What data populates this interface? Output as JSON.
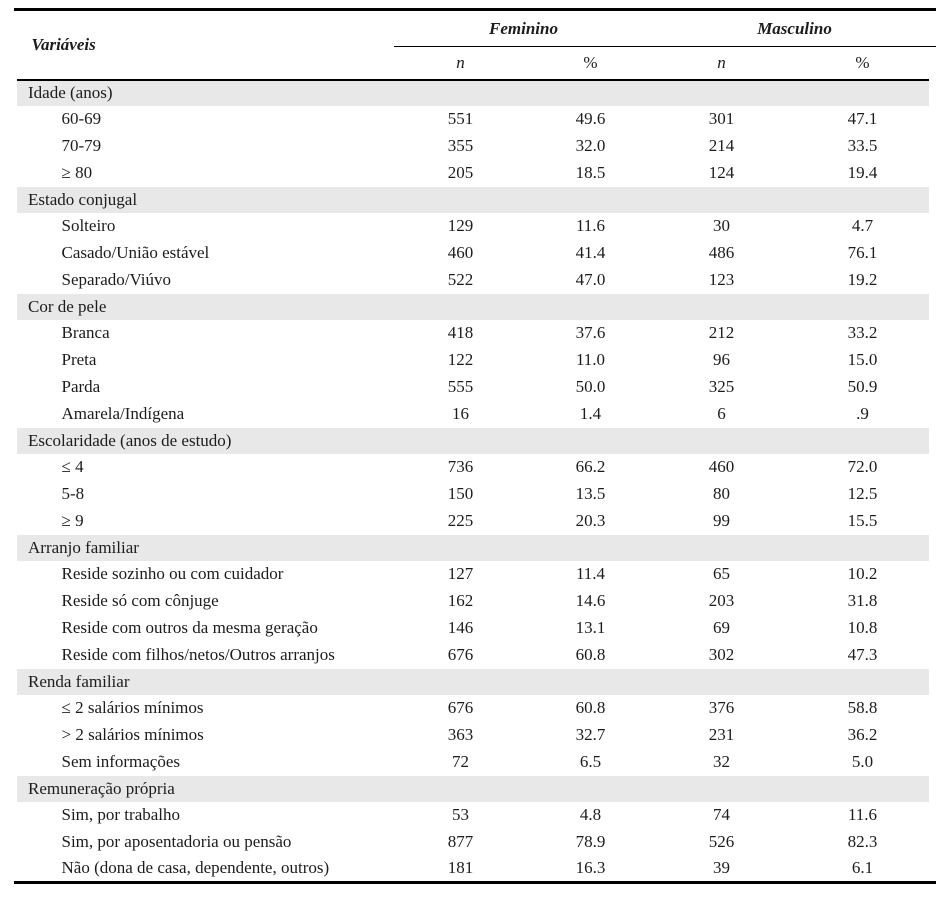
{
  "colors": {
    "section_band": "#e8e8e8",
    "rule": "#000000",
    "text": "#1c1c1c"
  },
  "table": {
    "header": {
      "variables_label": "Variáveis",
      "groups": [
        {
          "label": "Feminino",
          "subcols": [
            "n",
            "%"
          ]
        },
        {
          "label": "Masculino",
          "subcols": [
            "n",
            "%"
          ]
        }
      ]
    },
    "sections": [
      {
        "title": "Idade (anos)",
        "rows": [
          {
            "label": "60-69",
            "f_n": "551",
            "f_pct": "49.6",
            "m_n": "301",
            "m_pct": "47.1"
          },
          {
            "label": "70-79",
            "f_n": "355",
            "f_pct": "32.0",
            "m_n": "214",
            "m_pct": "33.5"
          },
          {
            "label": "≥ 80",
            "f_n": "205",
            "f_pct": "18.5",
            "m_n": "124",
            "m_pct": "19.4"
          }
        ]
      },
      {
        "title": "Estado conjugal",
        "rows": [
          {
            "label": "Solteiro",
            "f_n": "129",
            "f_pct": "11.6",
            "m_n": "30",
            "m_pct": "4.7"
          },
          {
            "label": "Casado/União estável",
            "f_n": "460",
            "f_pct": "41.4",
            "m_n": "486",
            "m_pct": "76.1"
          },
          {
            "label": "Separado/Viúvo",
            "f_n": "522",
            "f_pct": "47.0",
            "m_n": "123",
            "m_pct": "19.2"
          }
        ]
      },
      {
        "title": "Cor de pele",
        "rows": [
          {
            "label": "Branca",
            "f_n": "418",
            "f_pct": "37.6",
            "m_n": "212",
            "m_pct": "33.2"
          },
          {
            "label": "Preta",
            "f_n": "122",
            "f_pct": "11.0",
            "m_n": "96",
            "m_pct": "15.0"
          },
          {
            "label": "Parda",
            "f_n": "555",
            "f_pct": "50.0",
            "m_n": "325",
            "m_pct": "50.9"
          },
          {
            "label": "Amarela/Indígena",
            "f_n": "16",
            "f_pct": "1.4",
            "m_n": "6",
            "m_pct": ".9"
          }
        ]
      },
      {
        "title": "Escolaridade (anos de estudo)",
        "rows": [
          {
            "label": "≤ 4",
            "f_n": "736",
            "f_pct": "66.2",
            "m_n": "460",
            "m_pct": "72.0"
          },
          {
            "label": "5-8",
            "f_n": "150",
            "f_pct": "13.5",
            "m_n": "80",
            "m_pct": "12.5"
          },
          {
            "label": "≥ 9",
            "f_n": "225",
            "f_pct": "20.3",
            "m_n": "99",
            "m_pct": "15.5"
          }
        ]
      },
      {
        "title": "Arranjo familiar",
        "rows": [
          {
            "label": "Reside sozinho ou com cuidador",
            "f_n": "127",
            "f_pct": "11.4",
            "m_n": "65",
            "m_pct": "10.2"
          },
          {
            "label": "Reside só com cônjuge",
            "f_n": "162",
            "f_pct": "14.6",
            "m_n": "203",
            "m_pct": "31.8"
          },
          {
            "label": "Reside com outros da mesma geração",
            "f_n": "146",
            "f_pct": "13.1",
            "m_n": "69",
            "m_pct": "10.8"
          },
          {
            "label": "Reside com filhos/netos/Outros arranjos",
            "f_n": "676",
            "f_pct": "60.8",
            "m_n": "302",
            "m_pct": "47.3"
          }
        ]
      },
      {
        "title": "Renda familiar",
        "rows": [
          {
            "label": "≤ 2 salários mínimos",
            "f_n": "676",
            "f_pct": "60.8",
            "m_n": "376",
            "m_pct": "58.8"
          },
          {
            "label": "> 2 salários mínimos",
            "f_n": "363",
            "f_pct": "32.7",
            "m_n": "231",
            "m_pct": "36.2"
          },
          {
            "label": "Sem informações",
            "f_n": "72",
            "f_pct": "6.5",
            "m_n": "32",
            "m_pct": "5.0"
          }
        ]
      },
      {
        "title": "Remuneração própria",
        "rows": [
          {
            "label": "Sim, por trabalho",
            "f_n": "53",
            "f_pct": "4.8",
            "m_n": "74",
            "m_pct": "11.6"
          },
          {
            "label": "Sim, por aposentadoria ou pensão",
            "f_n": "877",
            "f_pct": "78.9",
            "m_n": "526",
            "m_pct": "82.3"
          },
          {
            "label": "Não (dona de casa, dependente, outros)",
            "f_n": "181",
            "f_pct": "16.3",
            "m_n": "39",
            "m_pct": "6.1"
          }
        ]
      }
    ]
  }
}
